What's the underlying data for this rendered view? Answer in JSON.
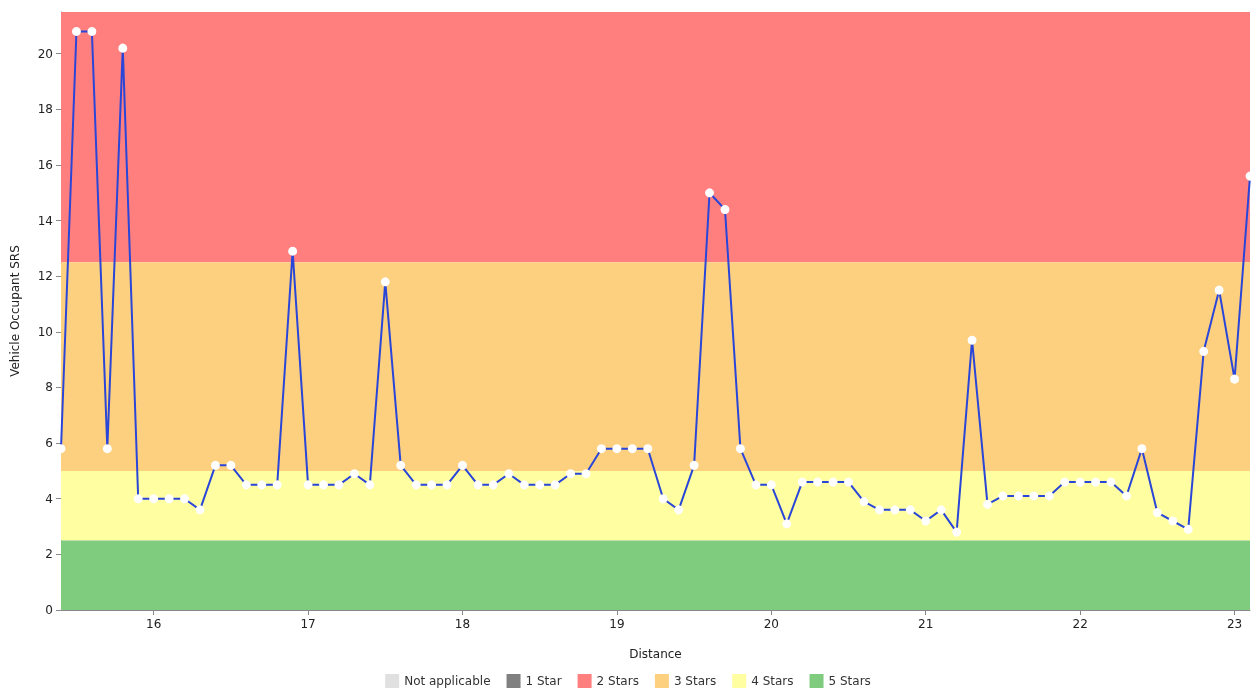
{
  "chart_data": {
    "type": "line",
    "xlabel": "Distance",
    "ylabel": "Vehicle Occupant SRS",
    "x": [
      15.4,
      15.5,
      15.6,
      15.7,
      15.8,
      15.9,
      16.0,
      16.1,
      16.2,
      16.3,
      16.4,
      16.5,
      16.6,
      16.7,
      16.8,
      16.9,
      17.0,
      17.1,
      17.2,
      17.3,
      17.4,
      17.5,
      17.6,
      17.7,
      17.8,
      17.9,
      18.0,
      18.1,
      18.2,
      18.3,
      18.4,
      18.5,
      18.6,
      18.7,
      18.8,
      18.9,
      19.0,
      19.1,
      19.2,
      19.3,
      19.4,
      19.5,
      19.6,
      19.7,
      19.8,
      19.9,
      20.0,
      20.1,
      20.2,
      20.3,
      20.4,
      20.5,
      20.6,
      20.7,
      20.8,
      20.9,
      21.0,
      21.1,
      21.2,
      21.3,
      21.4,
      21.5,
      21.6,
      21.7,
      21.8,
      21.9,
      22.0,
      22.1,
      22.2,
      22.3,
      22.4,
      22.5,
      22.6,
      22.7,
      22.8,
      22.9,
      23.0,
      23.1
    ],
    "series": [
      {
        "color": "#2a46d8",
        "values": [
          5.8,
          20.8,
          20.8,
          5.8,
          20.2,
          4.0,
          4.0,
          4.0,
          4.0,
          3.6,
          5.2,
          5.2,
          4.5,
          4.5,
          4.5,
          12.9,
          4.5,
          4.5,
          4.5,
          4.9,
          4.5,
          11.8,
          5.2,
          4.5,
          4.5,
          4.5,
          5.2,
          4.5,
          4.5,
          4.9,
          4.5,
          4.5,
          4.5,
          4.9,
          4.9,
          5.8,
          5.8,
          5.8,
          5.8,
          4.0,
          3.6,
          5.2,
          15.0,
          14.4,
          5.8,
          4.5,
          4.5,
          3.1,
          4.6,
          4.6,
          4.6,
          4.6,
          3.9,
          3.6,
          3.6,
          3.6,
          3.2,
          3.6,
          2.8,
          9.7,
          3.8,
          4.1,
          4.1,
          4.1,
          4.1,
          4.6,
          4.6,
          4.6,
          4.6,
          4.1,
          5.8,
          3.5,
          3.2,
          2.9,
          9.3,
          11.5,
          8.3,
          15.6
        ]
      },
      {
        "name": "Not applicable",
        "color": "#e0e0e0",
        "values": [
          null,
          null,
          null,
          null,
          null,
          null,
          null,
          null,
          null,
          null,
          null,
          null,
          null,
          null,
          null,
          null,
          null,
          null,
          null,
          null,
          null,
          null,
          null,
          null,
          null,
          null,
          null,
          null,
          null,
          null,
          null,
          null,
          null,
          null,
          null,
          null,
          null,
          null,
          null,
          null,
          null,
          null,
          null,
          null,
          null,
          null,
          null,
          null,
          null,
          null,
          null,
          null,
          null,
          null,
          null,
          null,
          null,
          null,
          null,
          null,
          null,
          null,
          null,
          null,
          null,
          null,
          null,
          null,
          null,
          null,
          null,
          null,
          null,
          null,
          null,
          null,
          null,
          null
        ]
      },
      {
        "name": "1 Star",
        "color": "#808080",
        "values": [
          null,
          null,
          null,
          null,
          null,
          null,
          null,
          null,
          null,
          null,
          null,
          null,
          null,
          null,
          null,
          null,
          null,
          null,
          null,
          null,
          null,
          null,
          null,
          null,
          null,
          null,
          null,
          null,
          null,
          null,
          null,
          null,
          null,
          null,
          null,
          null,
          null,
          null,
          null,
          null,
          null,
          null,
          null,
          null,
          null,
          null,
          null,
          null,
          null,
          null,
          null,
          null,
          null,
          null,
          null,
          null,
          null,
          null,
          null,
          null,
          null,
          null,
          null,
          null,
          null,
          null,
          null,
          null,
          null,
          null,
          null,
          null,
          null,
          null,
          null,
          null,
          null,
          null
        ]
      }
    ],
    "bands": [
      {
        "axis": "y",
        "from": 12.5,
        "to": 21.5,
        "label": "2 Stars",
        "color": "#ff7f7f"
      },
      {
        "axis": "y",
        "from": 5,
        "to": 12.5,
        "label": "3 Stars",
        "color": "#fdd080"
      },
      {
        "axis": "y",
        "from": 2.5,
        "to": 5,
        "label": "4 Stars",
        "color": "#fffea0"
      },
      {
        "axis": "y",
        "from": 0,
        "to": 2.5,
        "label": "5 Stars",
        "color": "#80cc7f"
      }
    ],
    "xlim": [
      15.4,
      23.1
    ],
    "ylim": [
      0,
      21.5
    ],
    "xticks": [
      16,
      17,
      18,
      19,
      20,
      21,
      22,
      23
    ],
    "yticks": [
      0,
      2,
      4,
      6,
      8,
      10,
      12,
      14,
      16,
      18,
      20
    ],
    "grid": false,
    "legend": "bottom",
    "marker": "circle",
    "line_style": "solid"
  }
}
